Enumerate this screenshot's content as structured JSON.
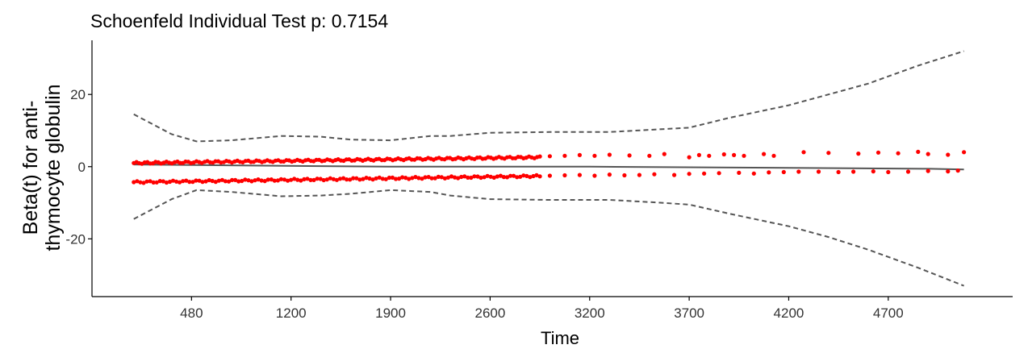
{
  "chart_data": {
    "type": "scatter",
    "title": "Schoenfeld Individual Test p: 0.7154",
    "xlabel": "Time",
    "ylabel_lines": [
      "Beta(t) for anti-",
      "thymocyte globulin"
    ],
    "x_ticks": [
      {
        "pos": 1,
        "label": "480"
      },
      {
        "pos": 2,
        "label": "1200"
      },
      {
        "pos": 3,
        "label": "1900"
      },
      {
        "pos": 4,
        "label": "2600"
      },
      {
        "pos": 5,
        "label": "3200"
      },
      {
        "pos": 6,
        "label": "3700"
      },
      {
        "pos": 7,
        "label": "4200"
      },
      {
        "pos": 8,
        "label": "4700"
      }
    ],
    "y_ticks": [
      20,
      0,
      -20
    ],
    "x_range": [
      0.0,
      9.25
    ],
    "y_range": [
      -36,
      35
    ],
    "grid": false,
    "colors": {
      "points": "#ff0000",
      "fit": "#555555",
      "band": "#555555",
      "axis": "#000000"
    },
    "fit_line": {
      "x": [
        0.42,
        2.98,
        5.0,
        6.84,
        8.42,
        8.76
      ],
      "y": [
        0.6,
        0.0,
        0.0,
        -0.3,
        -0.6,
        -0.8
      ]
    },
    "upper_band": {
      "x": [
        0.42,
        0.8,
        1.05,
        1.4,
        1.9,
        2.3,
        2.6,
        3.0,
        3.4,
        3.6,
        4.0,
        4.6,
        5.2,
        5.6,
        6.0,
        6.4,
        7.0,
        7.4,
        7.8,
        8.3,
        8.76
      ],
      "y": [
        14.5,
        9.0,
        7.0,
        7.3,
        8.5,
        8.3,
        7.5,
        7.3,
        8.5,
        8.5,
        9.4,
        9.6,
        9.6,
        10.2,
        10.8,
        13.5,
        17.0,
        20.0,
        23.0,
        28.0,
        32.0
      ]
    },
    "lower_band": {
      "x": [
        0.42,
        0.8,
        1.05,
        1.4,
        1.9,
        2.3,
        2.6,
        3.0,
        3.4,
        3.6,
        4.0,
        4.6,
        5.2,
        5.6,
        6.0,
        6.4,
        7.0,
        7.4,
        7.8,
        8.3,
        8.76
      ],
      "y": [
        -14.5,
        -9.0,
        -6.5,
        -7.0,
        -8.2,
        -8.0,
        -7.5,
        -6.5,
        -7.0,
        -8.0,
        -9.0,
        -9.2,
        -9.2,
        -9.8,
        -10.5,
        -13.0,
        -16.5,
        -19.5,
        -23.0,
        -28.0,
        -33.0
      ]
    },
    "points_upper": {
      "x_start": 0.42,
      "x_end": 4.5,
      "n": 150,
      "y_start": 1.0,
      "y_end": 2.6,
      "extra": [
        [
          4.6,
          2.9
        ],
        [
          4.75,
          3.0
        ],
        [
          4.9,
          3.2
        ],
        [
          5.05,
          3.0
        ],
        [
          5.2,
          3.3
        ],
        [
          5.4,
          3.1
        ],
        [
          5.6,
          3.0
        ],
        [
          5.75,
          3.5
        ],
        [
          6.0,
          2.6
        ],
        [
          6.1,
          3.2
        ],
        [
          6.2,
          3.0
        ],
        [
          6.35,
          3.4
        ],
        [
          6.45,
          3.2
        ],
        [
          6.55,
          3.0
        ],
        [
          6.75,
          3.5
        ],
        [
          6.85,
          3.0
        ],
        [
          7.15,
          4.0
        ],
        [
          7.4,
          3.8
        ],
        [
          7.7,
          3.6
        ],
        [
          7.9,
          3.9
        ],
        [
          8.1,
          3.7
        ],
        [
          8.3,
          4.1
        ],
        [
          8.4,
          3.5
        ],
        [
          8.6,
          3.3
        ],
        [
          8.76,
          4.0
        ]
      ]
    },
    "points_lower": {
      "x_start": 0.42,
      "x_end": 4.5,
      "n": 125,
      "y_start": -4.3,
      "y_end": -2.6,
      "extra": [
        [
          4.6,
          -2.5
        ],
        [
          4.75,
          -2.4
        ],
        [
          4.9,
          -2.3
        ],
        [
          5.05,
          -2.5
        ],
        [
          5.2,
          -2.2
        ],
        [
          5.35,
          -2.4
        ],
        [
          5.5,
          -2.3
        ],
        [
          5.65,
          -2.1
        ],
        [
          5.85,
          -2.3
        ],
        [
          6.0,
          -2.0
        ],
        [
          6.15,
          -1.9
        ],
        [
          6.3,
          -1.8
        ],
        [
          6.5,
          -1.7
        ],
        [
          6.65,
          -1.9
        ],
        [
          6.8,
          -1.6
        ],
        [
          6.95,
          -1.5
        ],
        [
          7.1,
          -1.4
        ],
        [
          7.3,
          -1.4
        ],
        [
          7.5,
          -1.5
        ],
        [
          7.65,
          -1.4
        ],
        [
          7.85,
          -1.3
        ],
        [
          8.0,
          -1.5
        ],
        [
          8.2,
          -1.4
        ],
        [
          8.4,
          -1.2
        ],
        [
          8.6,
          -1.3
        ],
        [
          8.7,
          -1.1
        ]
      ]
    }
  }
}
